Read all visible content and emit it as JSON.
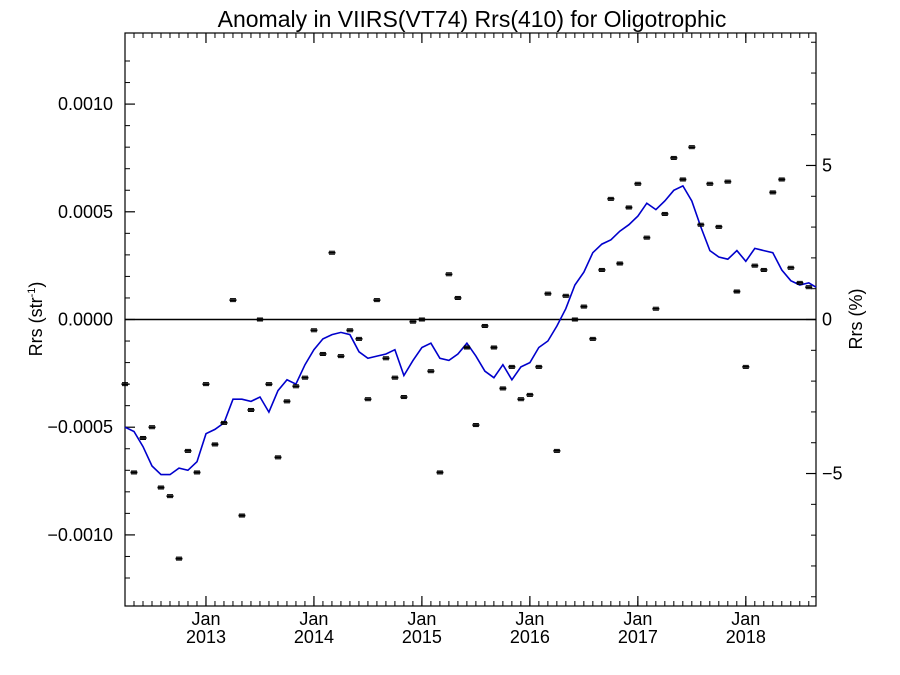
{
  "chart_data": {
    "type": "scatter",
    "title": "Anomaly in VIIRS(VT74) Rrs(410) for Oligotrophic",
    "ylabel_left": {
      "main": "Rrs (str",
      "sup": "-1",
      "close": ")"
    },
    "ylabel_right": "Rrs (%)",
    "xlim": [
      2012.0,
      2018.4
    ],
    "ylim": [
      -0.00133,
      0.00133
    ],
    "ylim_right": [
      -9.3,
      9.3
    ],
    "x_ticks": [
      {
        "x": 2012.75,
        "line1": "Jan",
        "line2": "2013"
      },
      {
        "x": 2013.75,
        "line1": "Jan",
        "line2": "2014"
      },
      {
        "x": 2014.75,
        "line1": "Jan",
        "line2": "2015"
      },
      {
        "x": 2015.75,
        "line1": "Jan",
        "line2": "2016"
      },
      {
        "x": 2016.75,
        "line1": "Jan",
        "line2": "2017"
      },
      {
        "x": 2017.75,
        "line1": "Jan",
        "line2": "2018"
      }
    ],
    "y_ticks_left": [
      {
        "v": 0.001,
        "label": "0.0010"
      },
      {
        "v": 0.0005,
        "label": "0.0005"
      },
      {
        "v": 0.0,
        "label": "0.0000"
      },
      {
        "v": -0.0005,
        "label": "−0.0005"
      },
      {
        "v": -0.001,
        "label": "−0.0010"
      }
    ],
    "y_ticks_right": [
      {
        "v": 5,
        "label": "5"
      },
      {
        "v": 0,
        "label": "0"
      },
      {
        "v": -5,
        "label": "−5"
      }
    ],
    "zero_line": 0,
    "colors": {
      "points": "#000000",
      "line": "#0000cc",
      "axes": "#000000"
    },
    "series": [
      {
        "kind": "points_with_errorbars",
        "x": [
          2012.0,
          2012.083,
          2012.167,
          2012.25,
          2012.333,
          2012.417,
          2012.5,
          2012.583,
          2012.667,
          2012.75,
          2012.833,
          2012.917,
          2013.0,
          2013.083,
          2013.167,
          2013.25,
          2013.333,
          2013.417,
          2013.5,
          2013.583,
          2013.667,
          2013.75,
          2013.833,
          2013.917,
          2014.0,
          2014.083,
          2014.167,
          2014.25,
          2014.333,
          2014.417,
          2014.5,
          2014.583,
          2014.667,
          2014.75,
          2014.833,
          2014.917,
          2015.0,
          2015.083,
          2015.167,
          2015.25,
          2015.333,
          2015.417,
          2015.5,
          2015.583,
          2015.667,
          2015.75,
          2015.833,
          2015.917,
          2016.0,
          2016.083,
          2016.167,
          2016.25,
          2016.333,
          2016.417,
          2016.5,
          2016.583,
          2016.667,
          2016.75,
          2016.833,
          2016.917,
          2017.0,
          2017.083,
          2017.167,
          2017.25,
          2017.333,
          2017.417,
          2017.5,
          2017.583,
          2017.667,
          2017.75,
          2017.833,
          2017.917,
          2018.0,
          2018.083,
          2018.167,
          2018.25,
          2018.333
        ],
        "y": [
          -0.0003,
          -0.00071,
          -0.00055,
          -0.0005,
          -0.00078,
          -0.00082,
          -0.00111,
          -0.00061,
          -0.00071,
          -0.0003,
          -0.00058,
          -0.00048,
          9e-05,
          -0.00091,
          -0.00042,
          0.0,
          -0.0003,
          -0.00064,
          -0.00038,
          -0.00031,
          -0.00027,
          -5e-05,
          -0.00016,
          0.00031,
          -0.00017,
          -5e-05,
          -9e-05,
          -0.00037,
          9e-05,
          -0.00018,
          -0.00027,
          -0.00036,
          -1e-05,
          0.0,
          -0.00024,
          -0.00071,
          0.00021,
          0.0001,
          -0.00013,
          -0.00049,
          -3e-05,
          -0.00013,
          -0.00032,
          -0.00022,
          -0.00037,
          -0.00035,
          -0.00022,
          0.00012,
          -0.00061,
          0.00011,
          0.0,
          6e-05,
          -9e-05,
          0.00023,
          0.00056,
          0.00026,
          0.00052,
          0.00063,
          0.00038,
          5e-05,
          0.00049,
          0.00075,
          0.00065,
          0.0008,
          0.00044,
          0.00063,
          0.00043,
          0.00064,
          0.00013,
          -0.00022,
          0.00025,
          0.00023,
          0.00059,
          0.00065,
          0.00024,
          0.00017,
          0.00015
        ],
        "err": 7e-06
      },
      {
        "kind": "line",
        "x": [
          2012.0,
          2012.083,
          2012.167,
          2012.25,
          2012.333,
          2012.417,
          2012.5,
          2012.583,
          2012.667,
          2012.75,
          2012.833,
          2012.917,
          2013.0,
          2013.083,
          2013.167,
          2013.25,
          2013.333,
          2013.417,
          2013.5,
          2013.583,
          2013.667,
          2013.75,
          2013.833,
          2013.917,
          2014.0,
          2014.083,
          2014.167,
          2014.25,
          2014.333,
          2014.417,
          2014.5,
          2014.583,
          2014.667,
          2014.75,
          2014.833,
          2014.917,
          2015.0,
          2015.083,
          2015.167,
          2015.25,
          2015.333,
          2015.417,
          2015.5,
          2015.583,
          2015.667,
          2015.75,
          2015.833,
          2015.917,
          2016.0,
          2016.083,
          2016.167,
          2016.25,
          2016.333,
          2016.417,
          2016.5,
          2016.583,
          2016.667,
          2016.75,
          2016.833,
          2016.917,
          2017.0,
          2017.083,
          2017.167,
          2017.25,
          2017.333,
          2017.417,
          2017.5,
          2017.583,
          2017.667,
          2017.75,
          2017.833,
          2017.917,
          2018.0,
          2018.083,
          2018.167,
          2018.25,
          2018.333,
          2018.4
        ],
        "y": [
          -0.0005,
          -0.00052,
          -0.00059,
          -0.00068,
          -0.00072,
          -0.00072,
          -0.00069,
          -0.0007,
          -0.00066,
          -0.00053,
          -0.00051,
          -0.00048,
          -0.00037,
          -0.00037,
          -0.00038,
          -0.00036,
          -0.00043,
          -0.00033,
          -0.00028,
          -0.0003,
          -0.00021,
          -0.00014,
          -9e-05,
          -7e-05,
          -6e-05,
          -7e-05,
          -0.00015,
          -0.00018,
          -0.00017,
          -0.00016,
          -0.00014,
          -0.00026,
          -0.00019,
          -0.00013,
          -0.00011,
          -0.00018,
          -0.00019,
          -0.00016,
          -0.00011,
          -0.00017,
          -0.00024,
          -0.00027,
          -0.00021,
          -0.00028,
          -0.00022,
          -0.0002,
          -0.00013,
          -0.0001,
          -3e-05,
          5e-05,
          0.00016,
          0.00022,
          0.00031,
          0.00035,
          0.00037,
          0.00041,
          0.00044,
          0.00048,
          0.00054,
          0.00051,
          0.00055,
          0.0006,
          0.00062,
          0.00055,
          0.00043,
          0.00032,
          0.00029,
          0.00028,
          0.00032,
          0.00027,
          0.00033,
          0.00032,
          0.00031,
          0.00023,
          0.00018,
          0.00016,
          0.00017,
          0.00015
        ]
      }
    ]
  }
}
